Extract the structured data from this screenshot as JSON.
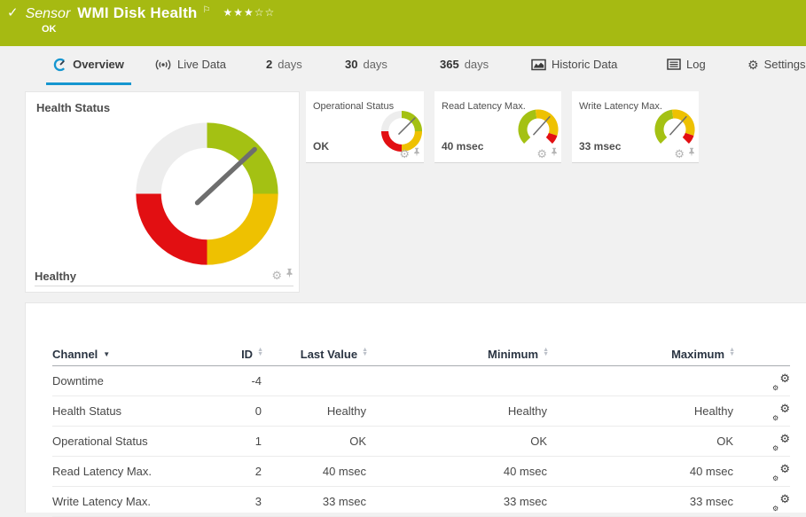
{
  "header": {
    "check_icon": "✓",
    "sensor_label": "Sensor",
    "title": "WMI Disk Health",
    "flag_icon": "⚐",
    "stars": "★★★☆☆",
    "status": "OK",
    "bg_color": "#a6ba12"
  },
  "tabs": [
    {
      "label": "Overview",
      "active": true
    },
    {
      "label": "Live Data"
    },
    {
      "num": "2",
      "unit": "days"
    },
    {
      "num": "30",
      "unit": "days"
    },
    {
      "num": "365",
      "unit": "days"
    },
    {
      "label": "Historic Data"
    },
    {
      "label": "Log"
    },
    {
      "label": "Settings",
      "gear": "⚙"
    }
  ],
  "health_panel": {
    "title": "Health Status",
    "status": "Healthy"
  },
  "mini_gauges": [
    {
      "title": "Operational Status",
      "value": "OK"
    },
    {
      "title": "Read Latency Max.",
      "value": "40 msec"
    },
    {
      "title": "Write Latency Max.",
      "value": "33 msec"
    }
  ],
  "icons": {
    "gear": "⚙",
    "sort_up": "▲",
    "sort_down": "▼",
    "sort_desc": "▼"
  },
  "table": {
    "columns": [
      "Channel",
      "ID",
      "Last Value",
      "Minimum",
      "Maximum"
    ],
    "rows": [
      [
        "Downtime",
        "-4",
        "",
        "",
        ""
      ],
      [
        "Health Status",
        "0",
        "Healthy",
        "Healthy",
        "Healthy"
      ],
      [
        "Operational Status",
        "1",
        "OK",
        "OK",
        "OK"
      ],
      [
        "Read Latency Max.",
        "2",
        "40 msec",
        "40 msec",
        "40 msec"
      ],
      [
        "Write Latency Max.",
        "3",
        "33 msec",
        "33 msec",
        "33 msec"
      ]
    ]
  },
  "colors": {
    "green": "#a4c113",
    "yellow": "#eec101",
    "red": "#e20f12",
    "gray_segment": "#ededed",
    "needle": "#6e6e6e",
    "accent_blue": "#1596d0"
  },
  "gauges": {
    "geometry": {
      "quad": {
        "outer": 48,
        "inner": 31,
        "nlen": 44,
        "tail": 9,
        "nw": 3.2
      },
      "arc": {
        "outer": 47,
        "inner": 26,
        "nlen": 40,
        "tail": 16,
        "nw": 3.2
      }
    },
    "quad_segments": [
      {
        "from": 270,
        "to": 360,
        "color": "#ededed"
      },
      {
        "from": 0,
        "to": 90,
        "color": "#a4c113"
      },
      {
        "from": 90,
        "to": 180,
        "color": "#eec101"
      },
      {
        "from": 180,
        "to": 270,
        "color": "#e20f12"
      }
    ],
    "arc_segments": [
      {
        "from": -135,
        "to": -8,
        "color": "#a4c113"
      },
      {
        "from": -8,
        "to": 108,
        "color": "#eec101"
      },
      {
        "from": 108,
        "to": 135,
        "color": "#e20f12"
      }
    ],
    "health": {
      "type": "quad",
      "needle_deg": 47
    },
    "op": {
      "type": "quad",
      "needle_deg": 45
    },
    "read": {
      "type": "arc",
      "needle_deg": 42
    },
    "write": {
      "type": "arc",
      "needle_deg": 42
    }
  }
}
